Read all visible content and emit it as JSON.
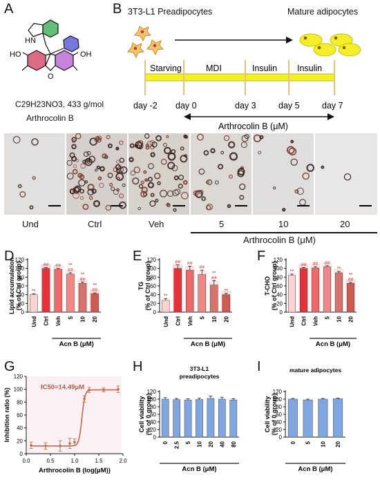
{
  "figure": {
    "panels": {
      "A": {
        "letter": "A",
        "ring_labels": [
          "HN",
          "HO",
          "O",
          "OH"
        ],
        "formula_text": "C29H23NO3, 433 g/mol",
        "compound_name": "Arthrocolin B"
      },
      "B": {
        "letter": "B",
        "start_cells": "3T3-L1 Preadipocytes",
        "end_cells": "Mature adipocytes",
        "stages": [
          "Starving",
          "MDI",
          "Insulin",
          "Insulin"
        ],
        "days": [
          "day -2",
          "day 0",
          "day 3",
          "day 5",
          "day 7"
        ],
        "treatment": "Arthrocolin B (μM)"
      },
      "C": {
        "letter": "C",
        "groups": [
          "Und",
          "Ctrl",
          "Veh",
          "5",
          "10",
          "20"
        ],
        "treatment": "Arthrocolin B (μM)"
      },
      "D": {
        "letter": "D"
      },
      "E": {
        "letter": "E"
      },
      "F": {
        "letter": "F"
      },
      "G": {
        "letter": "G"
      },
      "H": {
        "letter": "H"
      },
      "I": {
        "letter": "I"
      }
    }
  },
  "chart_data": [
    {
      "id": "D",
      "type": "bar",
      "categories": [
        "Und",
        "Ctrl",
        "Veh",
        "5",
        "10",
        "20"
      ],
      "values": [
        40,
        100,
        98,
        87,
        66,
        42
      ],
      "errors": [
        2,
        2,
        2,
        3,
        3,
        2
      ],
      "sig_star": [
        "**",
        "",
        "",
        "**",
        "**",
        "**"
      ],
      "sig_hash": [
        "",
        "##",
        "##",
        "##",
        "##",
        "##"
      ],
      "ylabel": "Lipid accumulation\n(% of Ctrl group)",
      "xlabel": "Acn B (μM)",
      "ylim": [
        0,
        120
      ],
      "yticks": [
        0,
        20,
        40,
        60,
        80,
        100,
        120
      ],
      "colors": [
        "#f9d3d3",
        "#e8303a",
        "#ee6a6a",
        "#f08888",
        "#d4746c",
        "#cf5a52"
      ]
    },
    {
      "id": "E",
      "type": "bar",
      "categories": [
        "Und",
        "Ctrl",
        "Veh",
        "5",
        "10",
        "20"
      ],
      "values": [
        27,
        100,
        96,
        86,
        62,
        40
      ],
      "errors": [
        4,
        8,
        9,
        10,
        10,
        3
      ],
      "sig_star": [
        "**",
        "",
        "",
        "",
        "**",
        "**"
      ],
      "sig_hash": [
        "",
        "##",
        "##",
        "##",
        "##",
        ""
      ],
      "ylabel": "TG\n(% of Ctrl group)",
      "xlabel": "Acn B (μM)",
      "ylim": [
        0,
        120
      ],
      "yticks": [
        0,
        20,
        40,
        60,
        80,
        100,
        120
      ],
      "colors": [
        "#f9d3d3",
        "#e8303a",
        "#ee6a6a",
        "#f08888",
        "#d4746c",
        "#cf5a52"
      ]
    },
    {
      "id": "F",
      "type": "bar",
      "categories": [
        "Und",
        "Ctrl",
        "Veh",
        "5",
        "10",
        "20"
      ],
      "values": [
        84,
        100,
        101,
        104,
        90,
        66
      ],
      "errors": [
        3,
        2,
        3,
        2,
        3,
        2
      ],
      "sig_star": [
        "**",
        "",
        "",
        "",
        "**",
        "**"
      ],
      "sig_hash": [
        "",
        "##",
        "##",
        "##",
        "",
        "##"
      ],
      "ylabel": "T-CHO\n(% of Ctrl group)",
      "xlabel": "Acn B (μM)",
      "ylim": [
        0,
        120
      ],
      "yticks": [
        0,
        20,
        40,
        60,
        80,
        100,
        120
      ],
      "colors": [
        "#f9d3d3",
        "#e8303a",
        "#ee6a6a",
        "#f08888",
        "#d4746c",
        "#cf5a52"
      ]
    },
    {
      "id": "G",
      "type": "line",
      "points": [
        {
          "x": 0.1,
          "y": 13,
          "err": 5
        },
        {
          "x": 0.4,
          "y": 12,
          "err": 5
        },
        {
          "x": 0.7,
          "y": 12,
          "err": 8
        },
        {
          "x": 0.9,
          "y": 16,
          "err": 8
        },
        {
          "x": 1.0,
          "y": 18,
          "err": 5
        },
        {
          "x": 1.2,
          "y": 85,
          "err": 5
        },
        {
          "x": 1.3,
          "y": 99,
          "err": 4
        },
        {
          "x": 1.6,
          "y": 99,
          "err": 3
        },
        {
          "x": 1.9,
          "y": 100,
          "err": 5
        }
      ],
      "curve": {
        "bottom": 12,
        "top": 99,
        "logIC50": 1.15,
        "hill": 14
      },
      "annotation": "IC50=14.49μM",
      "ylabel": "Inhibition ratio (%)",
      "xlabel": "Arthrocolin B (log(μM))",
      "xlim": [
        0,
        2.0
      ],
      "xticks": [
        0,
        0.5,
        1.0,
        1.5,
        2.0
      ],
      "ylim": [
        0,
        120
      ],
      "yticks": [
        0,
        20,
        40,
        60,
        80,
        100,
        120
      ]
    },
    {
      "id": "H",
      "type": "bar",
      "title": "3T3-L1\npreadipocytes",
      "categories": [
        "0",
        "2.5",
        "5",
        "10",
        "20",
        "40",
        "80"
      ],
      "values": [
        100,
        99,
        98,
        99,
        102,
        100,
        98
      ],
      "errors": [
        4,
        3,
        3,
        4,
        6,
        5,
        3
      ],
      "ylabel": "Cell viability\n(% of 0 group)",
      "xlabel": "Acn B (μM)",
      "ylim": [
        0,
        120
      ],
      "yticks": [
        0,
        20,
        40,
        60,
        80,
        100,
        120
      ],
      "color": "#7fa6e0"
    },
    {
      "id": "I",
      "type": "bar",
      "title": "mature adipocytes",
      "categories": [
        "0",
        "5",
        "10",
        "20"
      ],
      "values": [
        100,
        98,
        100,
        101
      ],
      "errors": [
        2,
        2,
        2,
        2
      ],
      "ylabel": "Cell viability\n(% of 0 group)",
      "xlabel": "Acn B (μM)",
      "ylim": [
        0,
        120
      ],
      "yticks": [
        0,
        20,
        40,
        60,
        80,
        100,
        120
      ],
      "color": "#7fa6e0"
    }
  ]
}
